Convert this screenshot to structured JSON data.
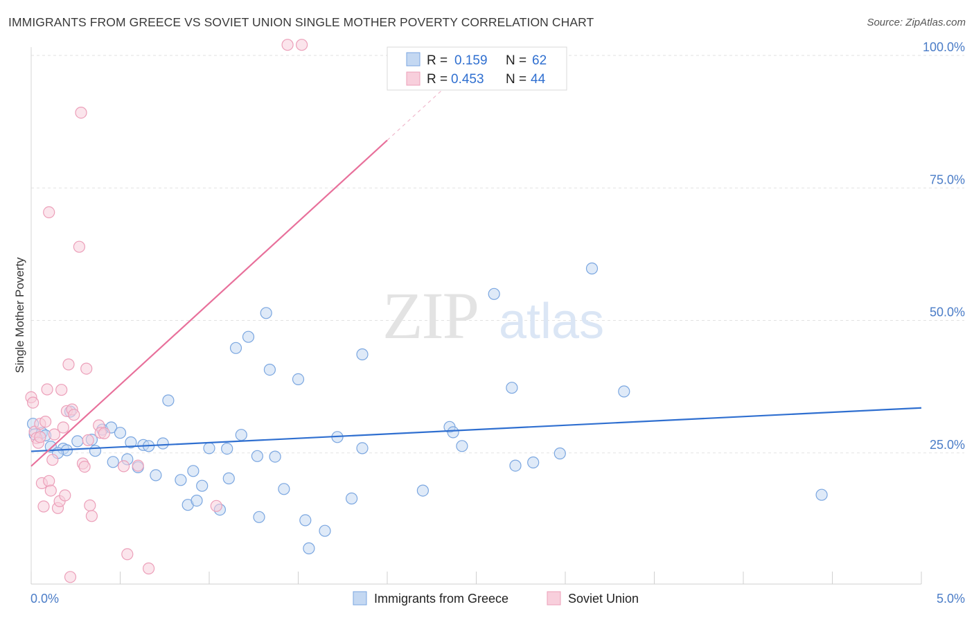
{
  "chart_data": {
    "type": "scatter",
    "title": "IMMIGRANTS FROM GREECE VS SOVIET UNION SINGLE MOTHER POVERTY CORRELATION CHART",
    "source": "Source: ZipAtlas.com",
    "xlabel": "",
    "ylabel": "Single Mother Poverty",
    "xlim": [
      0,
      5
    ],
    "ylim": [
      0,
      102
    ],
    "x_tick_labels": [
      "0.0%",
      "5.0%"
    ],
    "y_ticks": [
      25,
      50,
      75,
      100
    ],
    "y_tick_labels": [
      "25.0%",
      "50.0%",
      "75.0%",
      "100.0%"
    ],
    "grid": true,
    "watermark": {
      "zip": "ZIP",
      "atlas": "atlas"
    },
    "legend": {
      "placement": "top-center",
      "rows": [
        {
          "r_label": "R =",
          "r_value": "0.159",
          "n_label": "N =",
          "n_value": "62"
        },
        {
          "r_label": "R =",
          "r_value": "0.453",
          "n_label": "N =",
          "n_value": "44"
        }
      ]
    },
    "series": [
      {
        "name": "Immigrants from Greece",
        "color": "#7aa6e0",
        "fill": "#c4d8f2",
        "line_color": "#2f6fd0",
        "trend": {
          "x0": 0.0,
          "y0": 25.3,
          "x1": 5.0,
          "y1": 33.5
        },
        "points": [
          [
            0.02,
            28.5
          ],
          [
            0.06,
            28.8
          ],
          [
            0.08,
            28.3
          ],
          [
            0.11,
            26.2
          ],
          [
            0.18,
            25.8
          ],
          [
            0.2,
            25.5
          ],
          [
            0.22,
            32.8
          ],
          [
            0.26,
            27.2
          ],
          [
            0.34,
            27.5
          ],
          [
            0.36,
            25.4
          ],
          [
            0.4,
            29.4
          ],
          [
            0.45,
            29.8
          ],
          [
            0.46,
            23.3
          ],
          [
            0.5,
            28.8
          ],
          [
            0.54,
            23.8
          ],
          [
            0.56,
            27.0
          ],
          [
            0.6,
            22.3
          ],
          [
            0.63,
            26.5
          ],
          [
            0.66,
            26.3
          ],
          [
            0.7,
            20.8
          ],
          [
            0.74,
            26.8
          ],
          [
            0.77,
            34.9
          ],
          [
            0.84,
            19.9
          ],
          [
            0.88,
            15.2
          ],
          [
            0.91,
            21.6
          ],
          [
            0.93,
            16.0
          ],
          [
            0.96,
            18.8
          ],
          [
            1.0,
            25.9
          ],
          [
            1.06,
            14.3
          ],
          [
            1.1,
            25.8
          ],
          [
            1.11,
            20.2
          ],
          [
            1.15,
            44.8
          ],
          [
            1.18,
            28.4
          ],
          [
            1.22,
            46.9
          ],
          [
            1.27,
            24.4
          ],
          [
            1.28,
            12.9
          ],
          [
            1.32,
            51.4
          ],
          [
            1.34,
            40.7
          ],
          [
            1.37,
            24.3
          ],
          [
            1.42,
            18.2
          ],
          [
            1.5,
            38.9
          ],
          [
            1.54,
            12.3
          ],
          [
            1.56,
            7.0
          ],
          [
            1.65,
            10.3
          ],
          [
            1.72,
            28.0
          ],
          [
            1.8,
            16.4
          ],
          [
            1.86,
            43.6
          ],
          [
            1.86,
            25.9
          ],
          [
            2.2,
            17.9
          ],
          [
            2.35,
            29.9
          ],
          [
            2.37,
            28.9
          ],
          [
            2.42,
            26.3
          ],
          [
            2.6,
            55.0
          ],
          [
            2.7,
            37.3
          ],
          [
            2.72,
            22.6
          ],
          [
            2.82,
            23.2
          ],
          [
            2.97,
            24.9
          ],
          [
            3.15,
            59.8
          ],
          [
            3.33,
            36.6
          ],
          [
            4.44,
            17.1
          ],
          [
            0.01,
            30.5
          ],
          [
            0.15,
            25.0
          ]
        ]
      },
      {
        "name": "Soviet Union",
        "color": "#ec9fb9",
        "fill": "#f8cfdc",
        "line_color": "#e8709b",
        "trend": {
          "x0": 0.0,
          "y0": 22.5,
          "x1": 2.0,
          "y1": 84.0
        },
        "trend_ext": {
          "x0": 2.0,
          "y0": 84.0,
          "x1": 2.4,
          "y1": 96.3
        },
        "points": [
          [
            0.0,
            35.5
          ],
          [
            0.01,
            34.5
          ],
          [
            0.02,
            29.0
          ],
          [
            0.03,
            27.8
          ],
          [
            0.04,
            26.9
          ],
          [
            0.05,
            30.5
          ],
          [
            0.06,
            19.3
          ],
          [
            0.07,
            14.9
          ],
          [
            0.08,
            30.9
          ],
          [
            0.09,
            37.0
          ],
          [
            0.1,
            19.7
          ],
          [
            0.11,
            17.9
          ],
          [
            0.12,
            23.7
          ],
          [
            0.13,
            28.5
          ],
          [
            0.15,
            14.6
          ],
          [
            0.16,
            15.9
          ],
          [
            0.17,
            36.9
          ],
          [
            0.18,
            29.8
          ],
          [
            0.19,
            17.0
          ],
          [
            0.2,
            32.9
          ],
          [
            0.21,
            41.7
          ],
          [
            0.22,
            1.6
          ],
          [
            0.23,
            33.2
          ],
          [
            0.24,
            32.2
          ],
          [
            0.27,
            63.9
          ],
          [
            0.28,
            89.2
          ],
          [
            0.29,
            23.0
          ],
          [
            0.3,
            22.4
          ],
          [
            0.31,
            40.9
          ],
          [
            0.32,
            27.4
          ],
          [
            0.33,
            15.1
          ],
          [
            0.34,
            13.1
          ],
          [
            0.38,
            30.2
          ],
          [
            0.39,
            28.8
          ],
          [
            0.41,
            28.7
          ],
          [
            0.52,
            22.5
          ],
          [
            0.54,
            5.9
          ],
          [
            0.6,
            22.6
          ],
          [
            0.66,
            3.2
          ],
          [
            0.1,
            70.4
          ],
          [
            1.04,
            15.0
          ],
          [
            1.44,
            102.0
          ],
          [
            1.52,
            102.0
          ],
          [
            0.05,
            28.0
          ]
        ]
      }
    ]
  }
}
